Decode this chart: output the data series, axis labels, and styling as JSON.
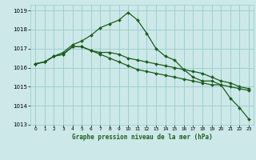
{
  "title": "Graphe pression niveau de la mer (hPa)",
  "background_color": "#cce8e8",
  "grid_color": "#99cccc",
  "line_color": "#1e5c1e",
  "xlim": [
    -0.5,
    23.5
  ],
  "ylim": [
    1013,
    1019.3
  ],
  "xticks": [
    0,
    1,
    2,
    3,
    4,
    5,
    6,
    7,
    8,
    9,
    10,
    11,
    12,
    13,
    14,
    15,
    16,
    17,
    18,
    19,
    20,
    21,
    22,
    23
  ],
  "yticks": [
    1013,
    1014,
    1015,
    1016,
    1017,
    1018,
    1019
  ],
  "line1": [
    1016.2,
    1016.3,
    1016.6,
    1016.7,
    1017.1,
    1017.1,
    1016.9,
    1016.8,
    1016.8,
    1016.7,
    1016.5,
    1016.4,
    1016.3,
    1016.2,
    1016.1,
    1016.0,
    1015.9,
    1015.8,
    1015.7,
    1015.5,
    1015.3,
    1015.2,
    1015.0,
    1014.9
  ],
  "line2": [
    1016.2,
    1016.3,
    1016.6,
    1016.8,
    1017.2,
    1017.4,
    1017.7,
    1018.1,
    1018.3,
    1018.5,
    1018.9,
    1018.5,
    1017.8,
    1017.0,
    1016.6,
    1016.4,
    1015.9,
    1015.5,
    1015.3,
    1015.3,
    1015.1,
    1014.4,
    1013.9,
    1013.3
  ],
  "line3": [
    1016.2,
    1016.3,
    1016.6,
    1016.7,
    1017.1,
    1017.1,
    1016.9,
    1016.7,
    1016.5,
    1016.3,
    1016.1,
    1015.9,
    1015.8,
    1015.7,
    1015.6,
    1015.5,
    1015.4,
    1015.3,
    1015.2,
    1015.1,
    1015.1,
    1015.0,
    1014.9,
    1014.8
  ],
  "figsize": [
    3.2,
    2.0
  ],
  "dpi": 100
}
